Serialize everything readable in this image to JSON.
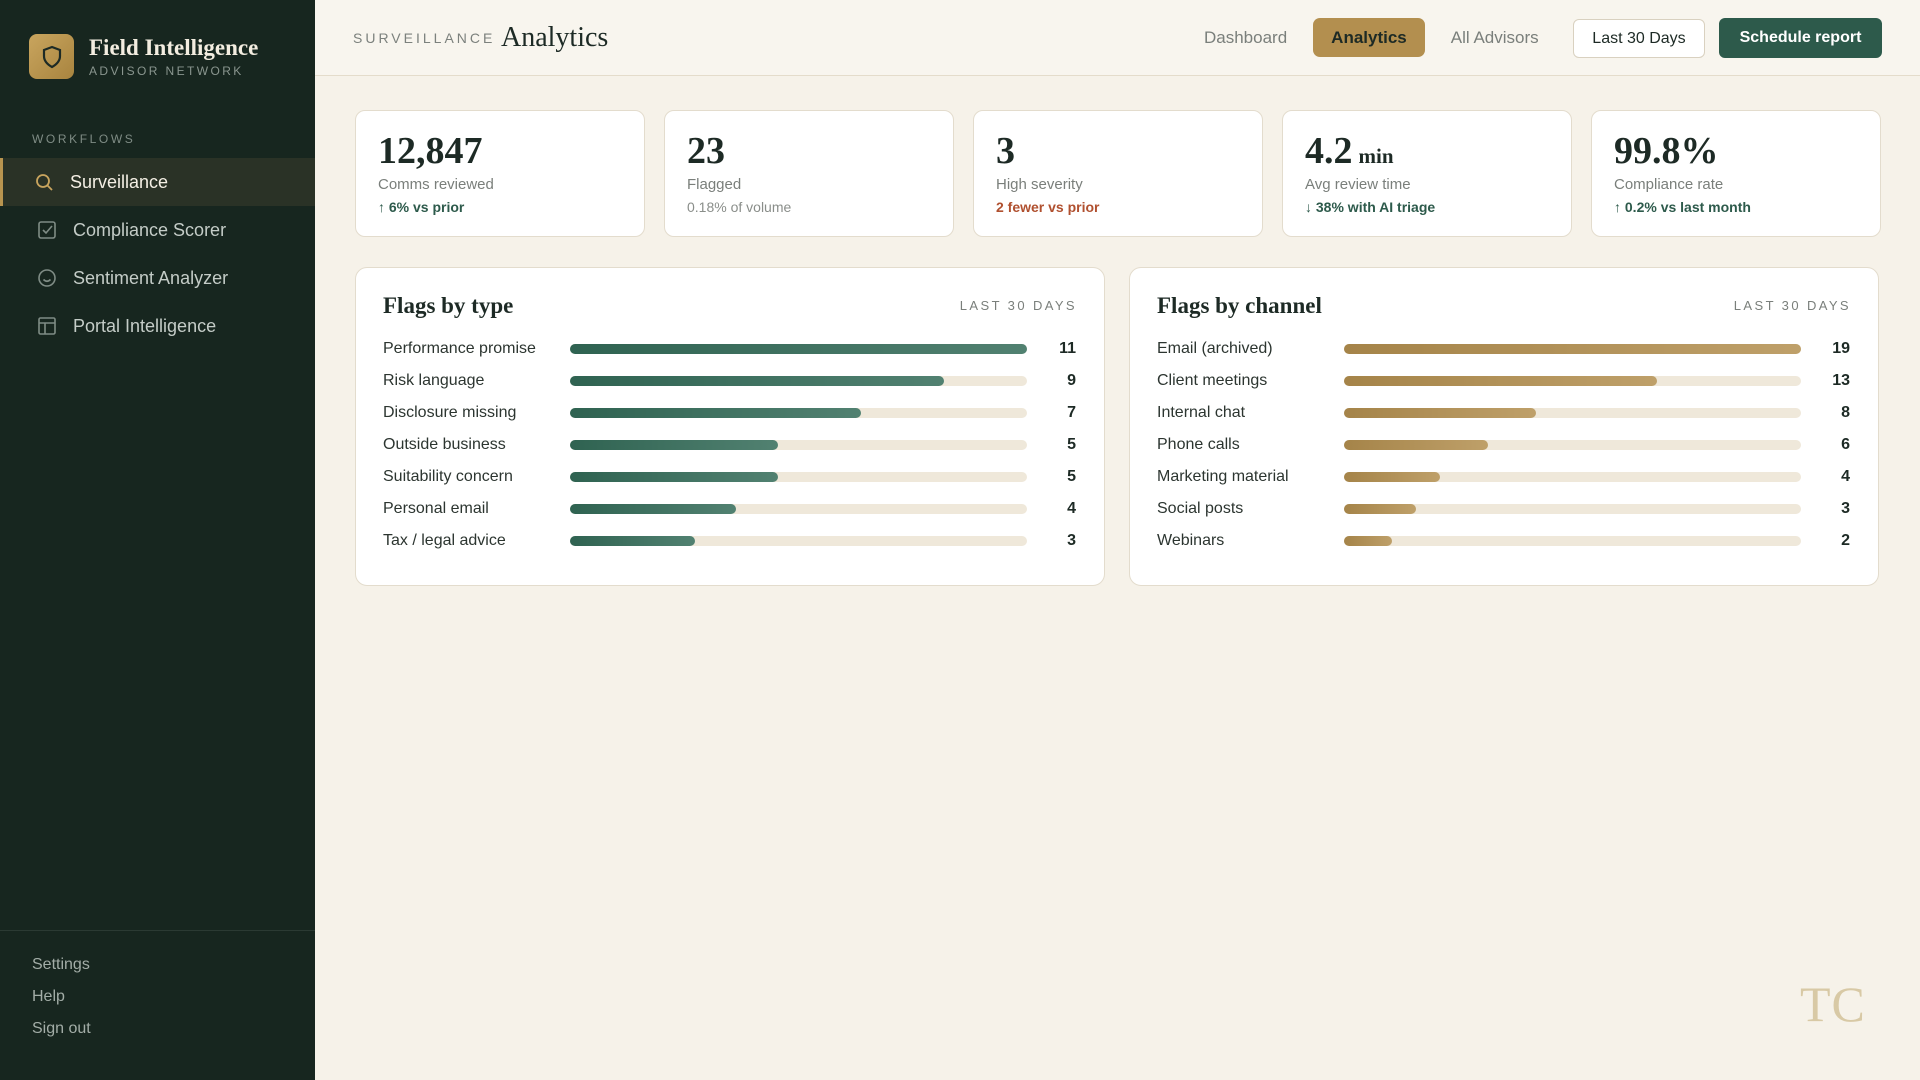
{
  "sidebar": {
    "brand": {
      "title": "Field Intelligence",
      "subtitle": "ADVISOR NETWORK"
    },
    "section_label": "WORKFLOWS",
    "nav": [
      {
        "label": "Surveillance",
        "active": true
      },
      {
        "label": "Compliance Scorer",
        "active": false
      },
      {
        "label": "Sentiment Analyzer",
        "active": false
      },
      {
        "label": "Portal Intelligence",
        "active": false
      }
    ],
    "footer_links": [
      "Settings",
      "Help",
      "Sign out"
    ]
  },
  "header": {
    "eyebrow": "SURVEILLANCE",
    "title": "Analytics",
    "tabs": [
      {
        "label": "Dashboard",
        "active": false
      },
      {
        "label": "Analytics",
        "active": true
      },
      {
        "label": "All Advisors",
        "active": false
      }
    ],
    "range_button": "Last 30 Days",
    "primary_button": "Schedule report"
  },
  "kpis": [
    {
      "value": "12,847",
      "label": "Comms reviewed",
      "delta": "↑ 6% vs prior",
      "tone": "positive"
    },
    {
      "value": "23",
      "label": "Flagged",
      "delta": "0.18% of volume",
      "tone": "neutral"
    },
    {
      "value": "3",
      "label": "High severity",
      "delta": "2 fewer vs prior",
      "tone": "negative"
    },
    {
      "value": "4.2",
      "unit": "min",
      "label": "Avg review time",
      "delta": "↓ 38% with AI triage",
      "tone": "positive"
    },
    {
      "value": "99.8%",
      "label": "Compliance rate",
      "delta": "↑ 0.2% vs last month",
      "tone": "positive"
    }
  ],
  "chart_data": [
    {
      "type": "bar",
      "orientation": "horizontal",
      "title": "Flags by type",
      "subtitle": "LAST 30 DAYS",
      "categories": [
        "Performance promise",
        "Risk language",
        "Disclosure missing",
        "Outside business",
        "Suitability concern",
        "Personal email",
        "Tax / legal advice"
      ],
      "values": [
        11,
        9,
        7,
        5,
        5,
        4,
        3
      ],
      "xlim": [
        0,
        11
      ],
      "color": "#336b58"
    },
    {
      "type": "bar",
      "orientation": "horizontal",
      "title": "Flags by channel",
      "subtitle": "LAST 30 DAYS",
      "categories": [
        "Email (archived)",
        "Client meetings",
        "Internal chat",
        "Phone calls",
        "Marketing material",
        "Social posts",
        "Webinars"
      ],
      "values": [
        19,
        13,
        8,
        6,
        4,
        3,
        2
      ],
      "xlim": [
        0,
        19
      ],
      "color": "#b38f4f"
    }
  ],
  "watermark": "TC"
}
